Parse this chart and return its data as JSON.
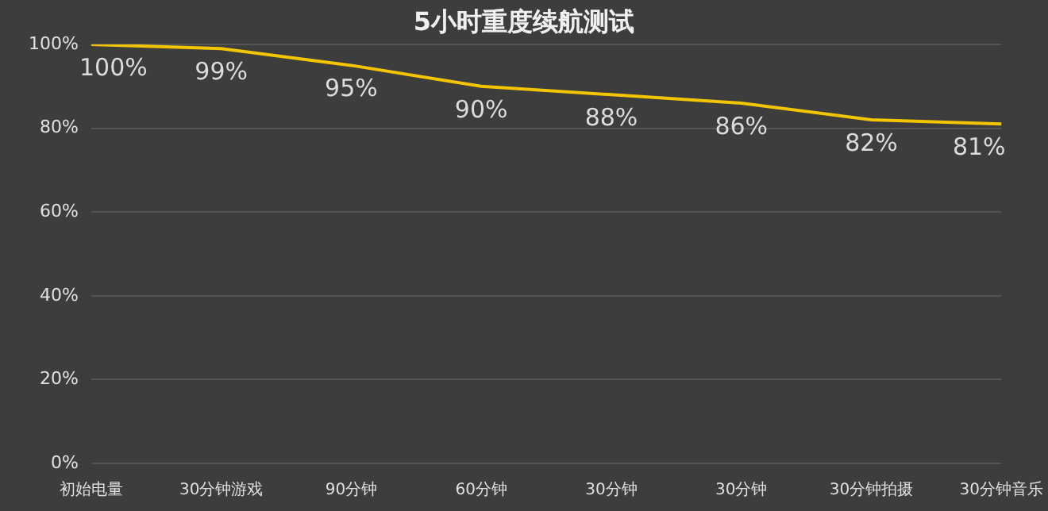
{
  "chart_data": {
    "type": "line",
    "title": "5小时重度续航测试",
    "categories": [
      "初始电量",
      "30分钟游戏",
      "90分钟",
      "60分钟",
      "30分钟",
      "30分钟",
      "30分钟拍摄",
      "30分钟音乐"
    ],
    "series": [
      {
        "color": "#f2c500",
        "values": [
          100,
          99,
          95,
          90,
          88,
          86,
          82,
          81
        ],
        "value_labels": [
          "100%",
          "99%",
          "95%",
          "90%",
          "88%",
          "86%",
          "82%",
          "81%"
        ]
      }
    ],
    "ylim": [
      0,
      100
    ],
    "yticks": [
      {
        "value": 0,
        "label": "0%"
      },
      {
        "value": 20,
        "label": "20%"
      },
      {
        "value": 40,
        "label": "40%"
      },
      {
        "value": 60,
        "label": "60%"
      },
      {
        "value": 80,
        "label": "80%"
      },
      {
        "value": 100,
        "label": "100%"
      }
    ],
    "grid": "y",
    "legend": false,
    "marker": "none",
    "line_style": "solid"
  }
}
